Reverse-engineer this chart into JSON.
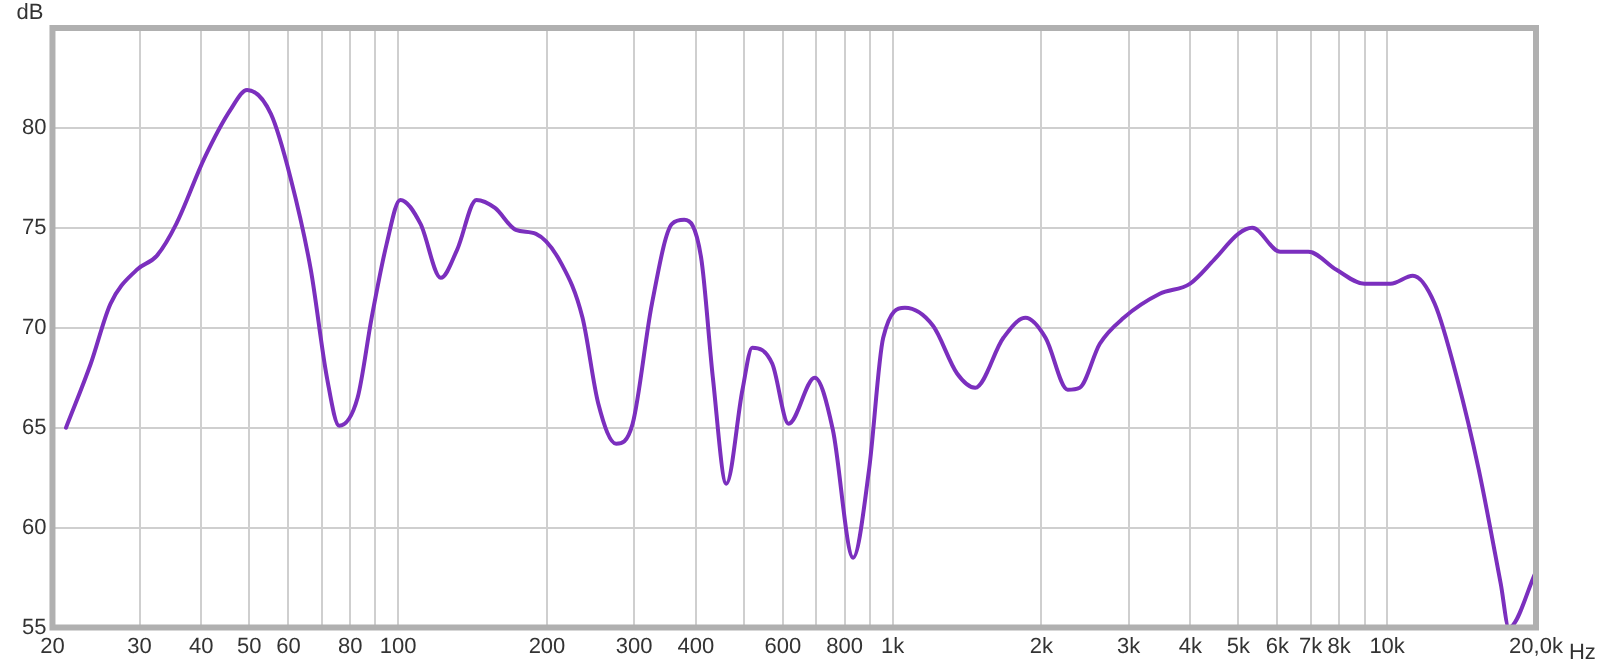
{
  "chart_data": {
    "type": "line",
    "xlabel": "Hz",
    "ylabel": "dB",
    "log": "x",
    "grid": true,
    "legend": false,
    "marker": "none",
    "line_style": "solid",
    "xlim": [
      20,
      20000
    ],
    "ylim": [
      55,
      85
    ],
    "xticks": [
      20,
      30,
      40,
      50,
      60,
      {
        "value": 70,
        "label": null
      },
      80,
      {
        "value": 90,
        "label": null
      },
      100,
      200,
      300,
      400,
      {
        "value": 500,
        "label": null
      },
      600,
      {
        "value": 700,
        "label": null
      },
      800,
      {
        "value": 900,
        "label": null
      },
      {
        "value": 1000,
        "label": "1k"
      },
      {
        "value": 2000,
        "label": "2k"
      },
      {
        "value": 3000,
        "label": "3k"
      },
      {
        "value": 4000,
        "label": "4k"
      },
      {
        "value": 5000,
        "label": "5k"
      },
      {
        "value": 6000,
        "label": "6k"
      },
      {
        "value": 7000,
        "label": "7k"
      },
      {
        "value": 8000,
        "label": "8k"
      },
      {
        "value": 9000,
        "label": null
      },
      {
        "value": 10000,
        "label": "10k"
      },
      {
        "value": 20000,
        "label": "20,0k"
      }
    ],
    "yticks": [
      55,
      60,
      65,
      70,
      75,
      80
    ],
    "series": [
      {
        "color": "#7b2fbe",
        "x": [
          21.3,
          23.9,
          26.2,
          29.6,
          32.5,
          35.6,
          40.6,
          45.8,
          49.5,
          55.3,
          60.6,
          66.6,
          71.8,
          76,
          82.8,
          88.4,
          94.8,
          101,
          111,
          122,
          131.6,
          144,
          157,
          173,
          190,
          214,
          236,
          254,
          276,
          298,
          326,
          358,
          379,
          410,
          433,
          461,
          497,
          520,
          571,
          616,
          696,
          757,
          832,
          896,
          957,
          1059,
          1207,
          1351,
          1469,
          1675,
          1857,
          2038,
          2260,
          2389,
          2624,
          2933,
          3469,
          3990,
          4466,
          5000,
          5336,
          6081,
          6931,
          7897,
          9000,
          10160,
          11270,
          12480,
          13840,
          15320,
          16970,
          17630,
          20000
        ],
        "values": [
          65,
          68.2,
          71.2,
          72.9,
          73.6,
          75.2,
          78.5,
          80.9,
          81.9,
          80.7,
          77.5,
          72.9,
          67.5,
          65.1,
          66.5,
          70.5,
          74.2,
          76.4,
          75.2,
          72.5,
          73.9,
          76.4,
          76,
          74.9,
          74.7,
          73.2,
          70.5,
          66.2,
          64.2,
          65.2,
          71.2,
          75.2,
          75.4,
          73.5,
          67.5,
          62.2,
          66.9,
          69,
          68.2,
          65.2,
          67.5,
          64.9,
          58.5,
          62.9,
          69.5,
          71,
          70.1,
          67.7,
          67,
          69.5,
          70.5,
          69.5,
          66.9,
          67,
          69.2,
          70.5,
          71.7,
          72.2,
          73.4,
          74.7,
          75,
          73.8,
          73.8,
          72.9,
          72.2,
          72.2,
          72.6,
          71.2,
          67.5,
          62.9,
          57.2,
          55,
          57.8
        ]
      }
    ]
  }
}
